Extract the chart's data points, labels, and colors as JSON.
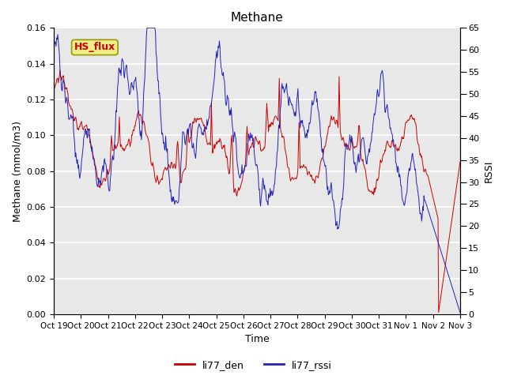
{
  "title": "Methane",
  "xlabel": "Time",
  "ylabel_left": "Methane (mmol/m3)",
  "ylabel_right": "RSSI",
  "ylim_left": [
    0.0,
    0.16
  ],
  "ylim_right": [
    0,
    65
  ],
  "yticks_left": [
    0.0,
    0.02,
    0.04,
    0.06,
    0.08,
    0.1,
    0.12,
    0.14,
    0.16
  ],
  "yticks_right": [
    0,
    5,
    10,
    15,
    20,
    25,
    30,
    35,
    40,
    45,
    50,
    55,
    60,
    65
  ],
  "xtick_labels": [
    "Oct 19",
    "Oct 20",
    "Oct 21",
    "Oct 22",
    "Oct 23",
    "Oct 24",
    "Oct 25",
    "Oct 26",
    "Oct 27",
    "Oct 28",
    "Oct 29",
    "Oct 30",
    "Oct 31",
    "Nov 1",
    "Nov 2",
    "Nov 3"
  ],
  "color_red": "#cc0000",
  "color_blue": "#2222bb",
  "bg_color": "#e8e8e8",
  "legend_label_red": "li77_den",
  "legend_label_blue": "li77_rssi",
  "annotation_text": "HS_flux",
  "annotation_bg": "#eeee88",
  "annotation_border": "#999900",
  "title_fontsize": 11,
  "axis_fontsize": 9,
  "tick_fontsize": 8
}
